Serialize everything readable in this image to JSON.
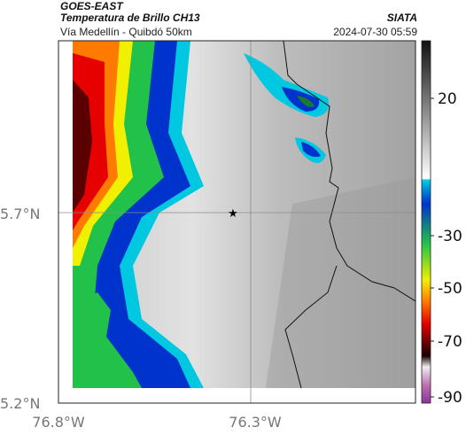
{
  "header": {
    "satellite": "GOES-EAST",
    "product": "Temperatura de Brillo CH13",
    "route": "Vía Medellín - Quibdó 50km",
    "agency": "SIATA",
    "timestamp": "2024-07-30 05:59"
  },
  "map": {
    "lat_ticks": [
      "5.7°N",
      "5.2°N"
    ],
    "lon_ticks": [
      "76.8°W",
      "76.3°W"
    ],
    "marker": "star-icon"
  },
  "colorbar": {
    "ticks": [
      "20",
      "-30",
      "-50",
      "-70",
      "-90"
    ],
    "colors": {
      "warm_gray_high": "#e8e8e8",
      "cyan": "#00c8e0",
      "blue": "#0033cc",
      "green": "#22c24a",
      "yellow": "#f0f000",
      "orange": "#ff7a00",
      "red": "#e60000",
      "dark_red": "#5a0000",
      "purple": "#b040a0"
    }
  }
}
